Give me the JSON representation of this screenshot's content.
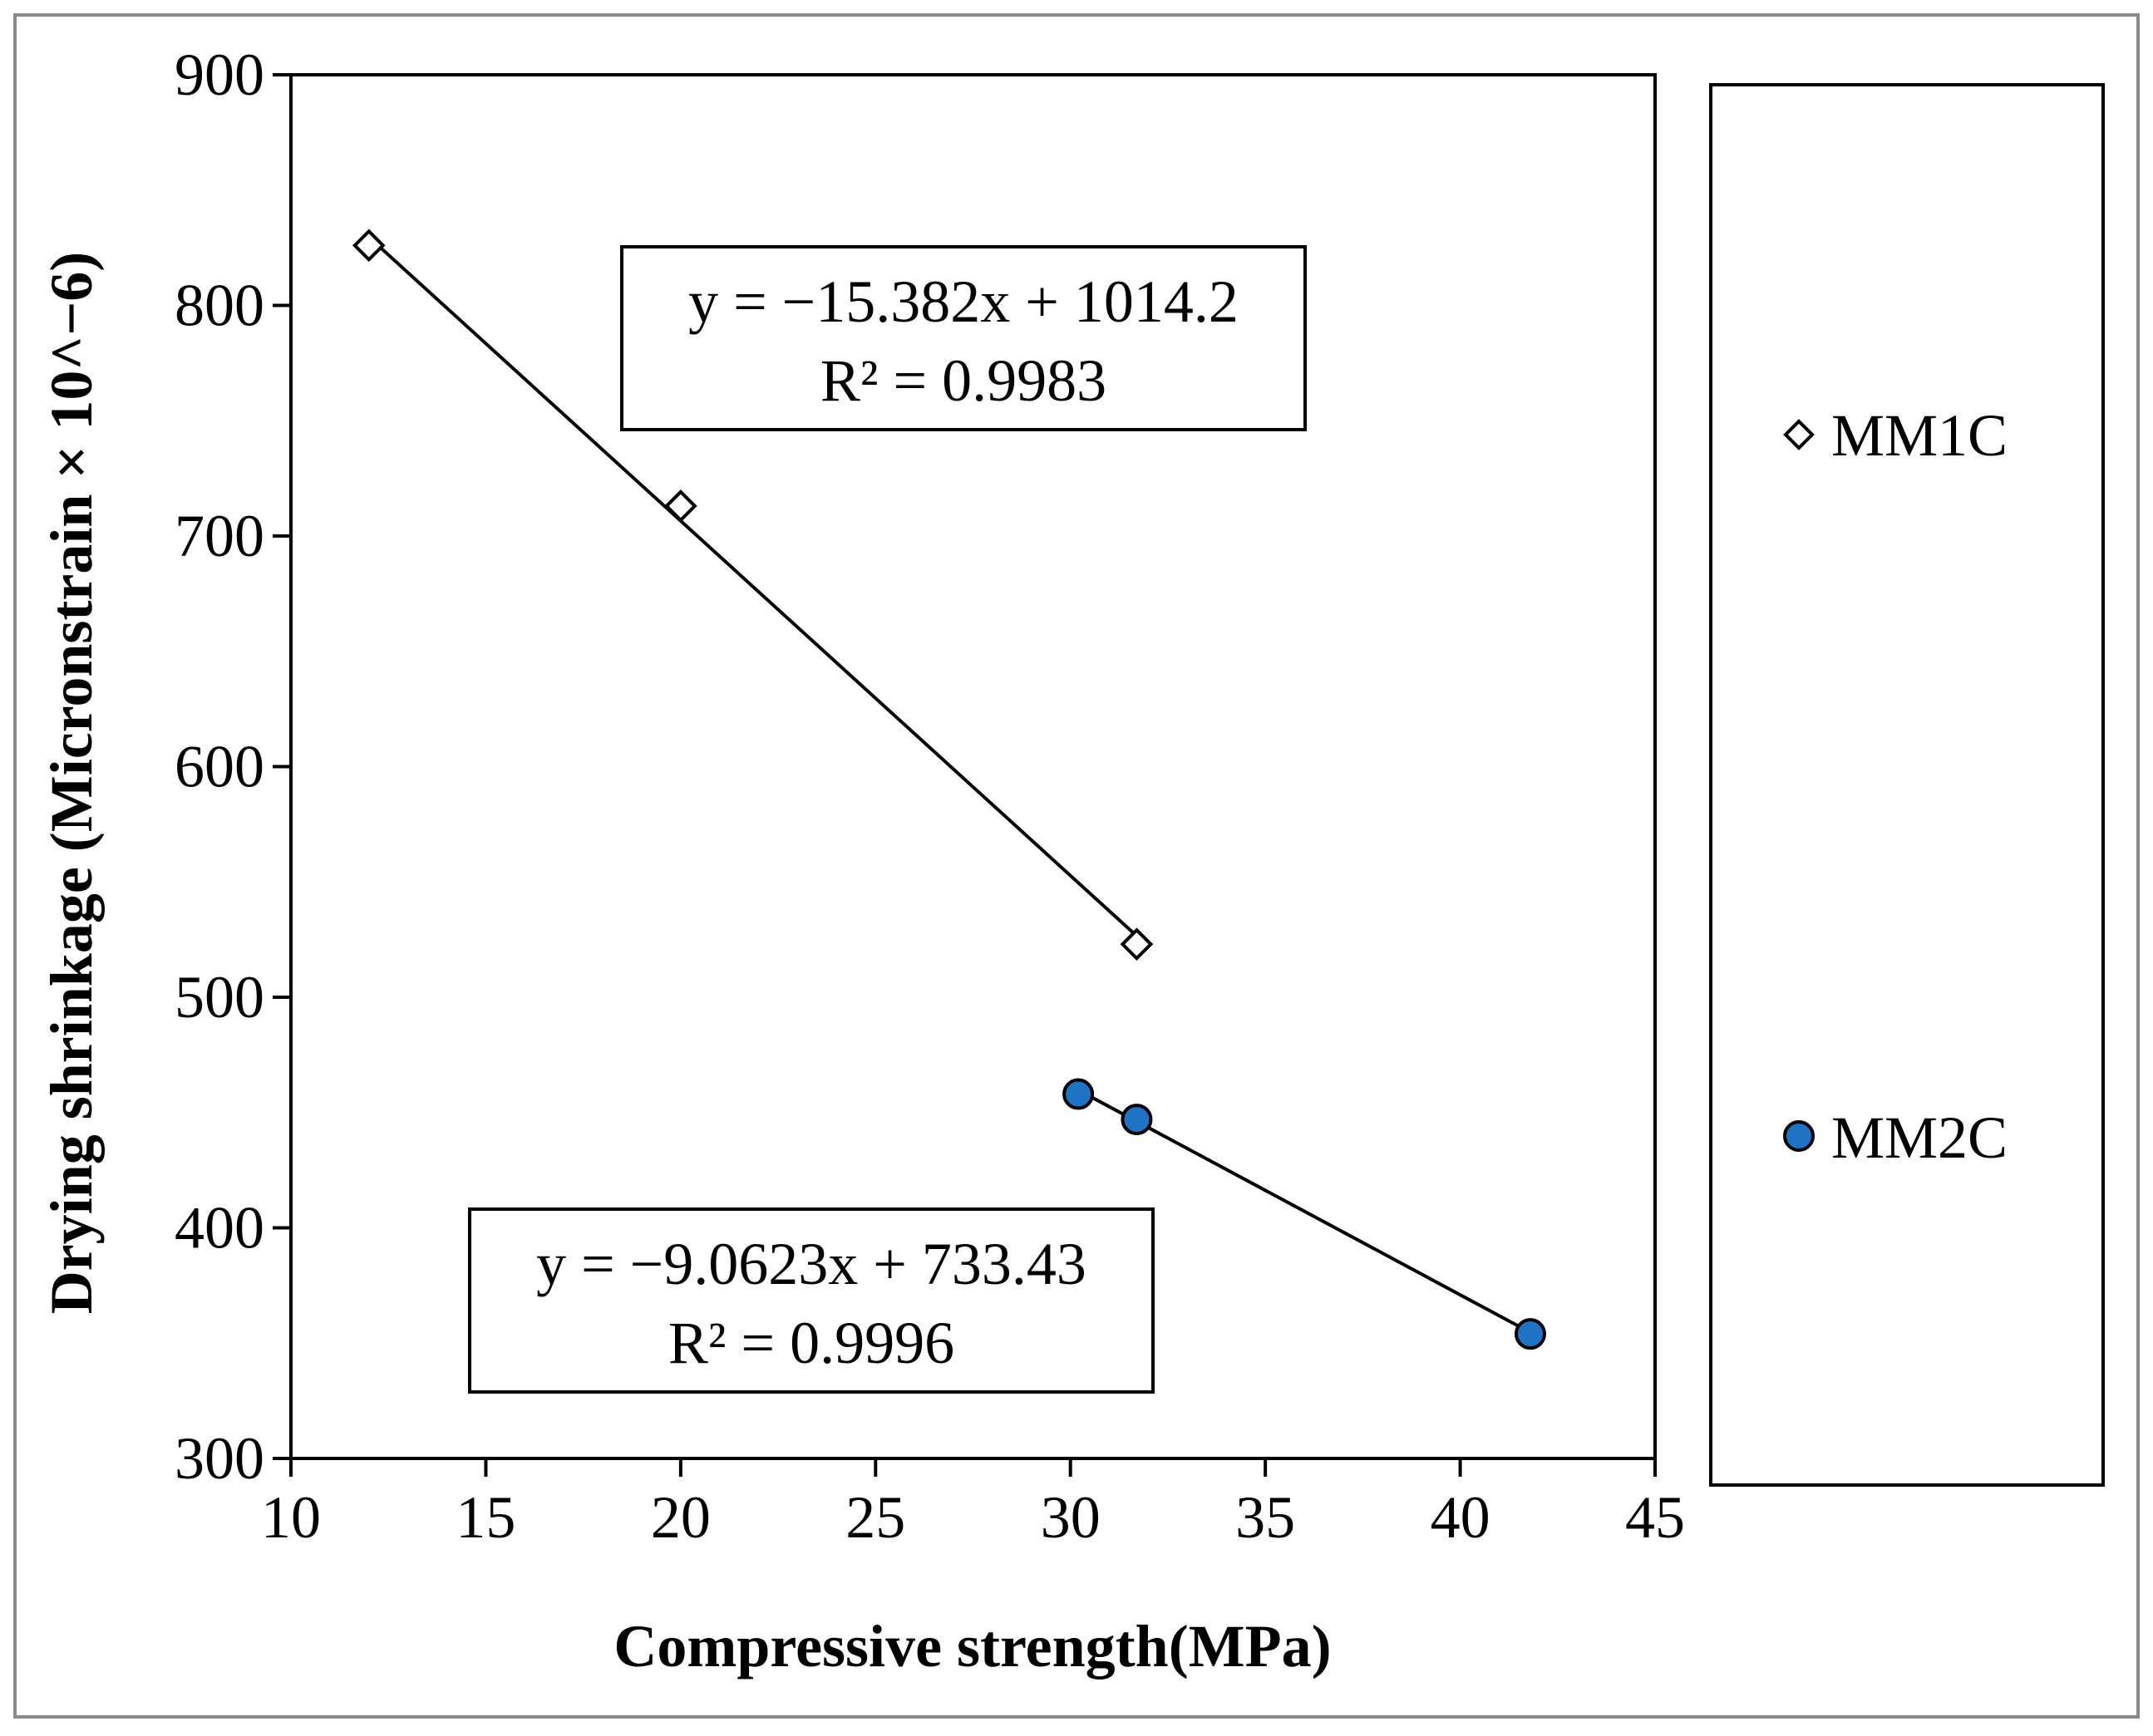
{
  "chart_data": {
    "type": "scatter",
    "title": "",
    "xlabel": "Compressive strength(MPa)",
    "ylabel": "Drying shrinkage (Micronstrain × 10^−6)",
    "xlim": [
      10,
      45
    ],
    "ylim": [
      300,
      900
    ],
    "x_ticks": [
      10,
      15,
      20,
      25,
      30,
      35,
      40,
      45
    ],
    "y_ticks": [
      300,
      400,
      500,
      600,
      700,
      800,
      900
    ],
    "grid": false,
    "legend_position": "right",
    "series": [
      {
        "name": "MM1C",
        "marker": "open-diamond",
        "color": "#ffffff",
        "edge_color": "#000000",
        "points": [
          [
            12.0,
            826
          ],
          [
            20.0,
            713
          ],
          [
            31.7,
            523
          ]
        ],
        "trendline": {
          "slope": -15.382,
          "intercept": 1014.2,
          "x_range": [
            12.0,
            31.7
          ]
        },
        "equation": "y = −15.382x + 1014.2",
        "r_squared": "R² = 0.9983"
      },
      {
        "name": "MM2C",
        "marker": "filled-circle",
        "color": "#1f73c4",
        "edge_color": "#000000",
        "points": [
          [
            30.2,
            458
          ],
          [
            31.7,
            447
          ],
          [
            41.8,
            354
          ]
        ],
        "trendline": {
          "slope": -9.0623,
          "intercept": 733.43,
          "x_range": [
            30.2,
            41.8
          ]
        },
        "equation": "y = −9.0623x + 733.43",
        "r_squared": "R² = 0.9996"
      }
    ]
  }
}
